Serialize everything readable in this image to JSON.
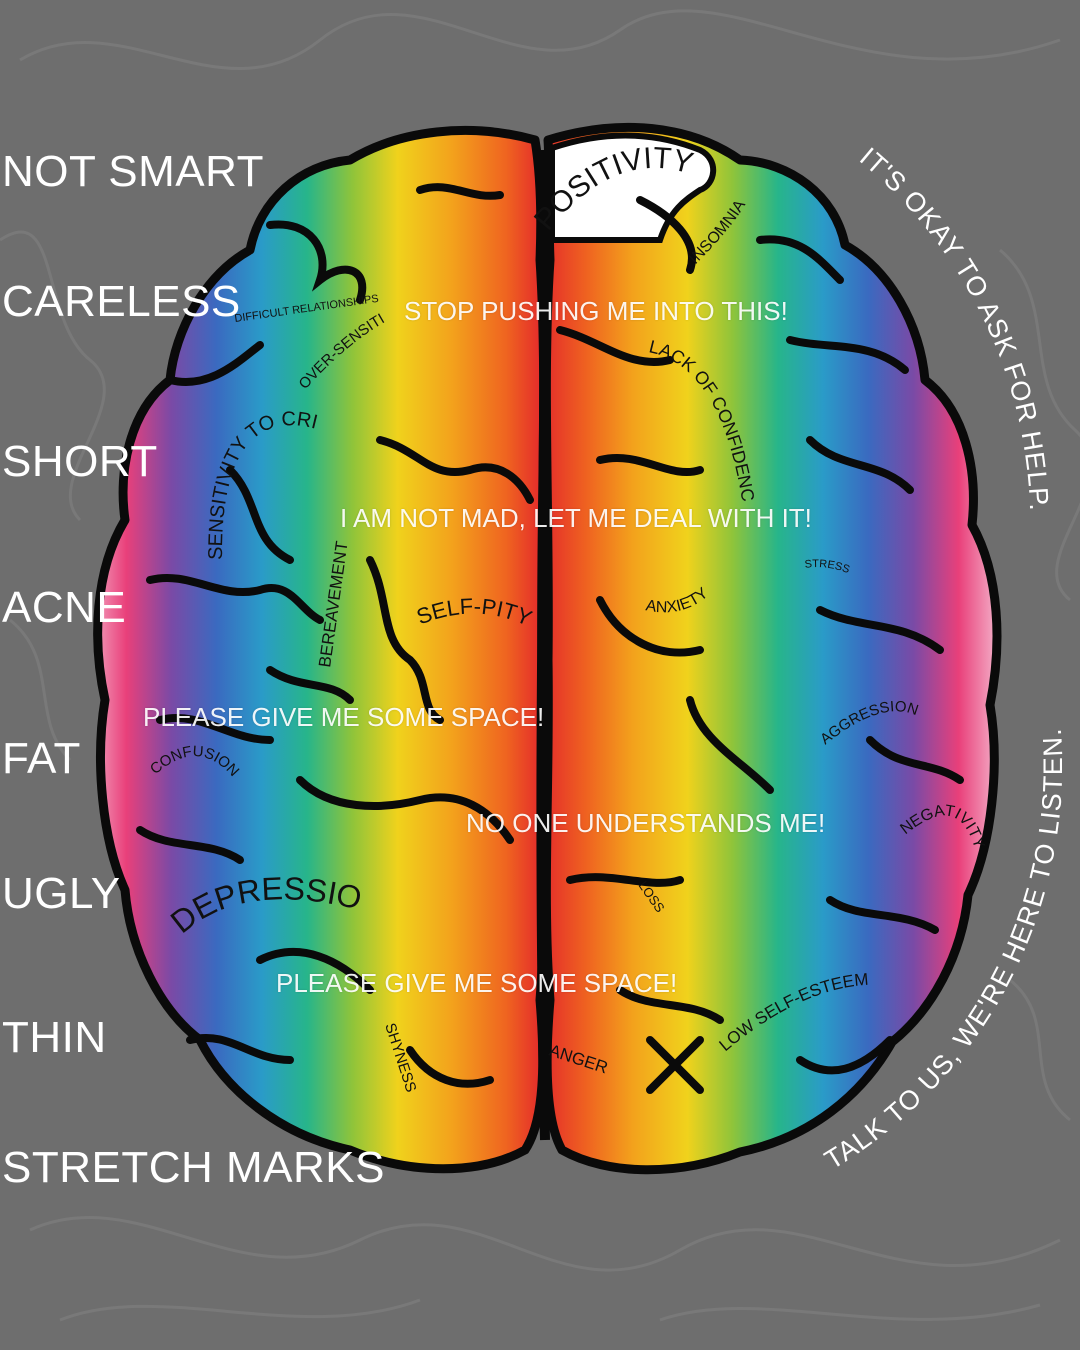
{
  "colors": {
    "background": "#6e6e6e",
    "outline": "#0a0a0a",
    "text_light": "#ffffff",
    "spectrum": [
      "#e9407a",
      "#7a4aa6",
      "#2a8fc6",
      "#27b58a",
      "#f0d21c",
      "#f07a1c",
      "#e5302a"
    ]
  },
  "side_labels": [
    "NOT SMART",
    "CARELESS",
    "SHORT",
    "ACNE",
    "FAT",
    "UGLY",
    "THIN",
    "STRETCH MARKS"
  ],
  "thoughts": [
    "STOP PUSHING ME INTO THIS!",
    "I AM NOT MAD, LET ME DEAL WITH IT!",
    "PLEASE GIVE ME SOME SPACE!",
    "NO ONE UNDERSTANDS ME!",
    "PLEASE GIVE ME SOME SPACE!"
  ],
  "brain_words": {
    "positivity": "POSITIVITY",
    "difficult_relationships": "DIFFICULT RELATIONSHIPS",
    "over_sensitivity": "OVER-SENSITIVITY",
    "sensitivity_to_criticism": "SENSITIVITY TO CRITICISM",
    "bereavement": "BEREAVEMENT",
    "self_pity": "SELF-PITY",
    "confusion": "CONFUSION",
    "depression": "DEPRESSION",
    "shyness": "SHYNESS",
    "insomnia": "INSOMNIA",
    "lack_of_confidence": "LACK OF CONFIDENCE",
    "stress": "STRESS",
    "anxiety": "ANXIETY",
    "aggression": "AGGRESSION",
    "negativity": "NEGATIVITY",
    "loss": "LOSS",
    "low_self_esteem": "LOW SELF-ESTEEM",
    "anger": "ANGER"
  },
  "arc_messages": {
    "top": "IT'S OKAY TO ASK FOR HELP.",
    "bottom": "TALK TO US, WE'RE HERE TO LISTEN."
  }
}
